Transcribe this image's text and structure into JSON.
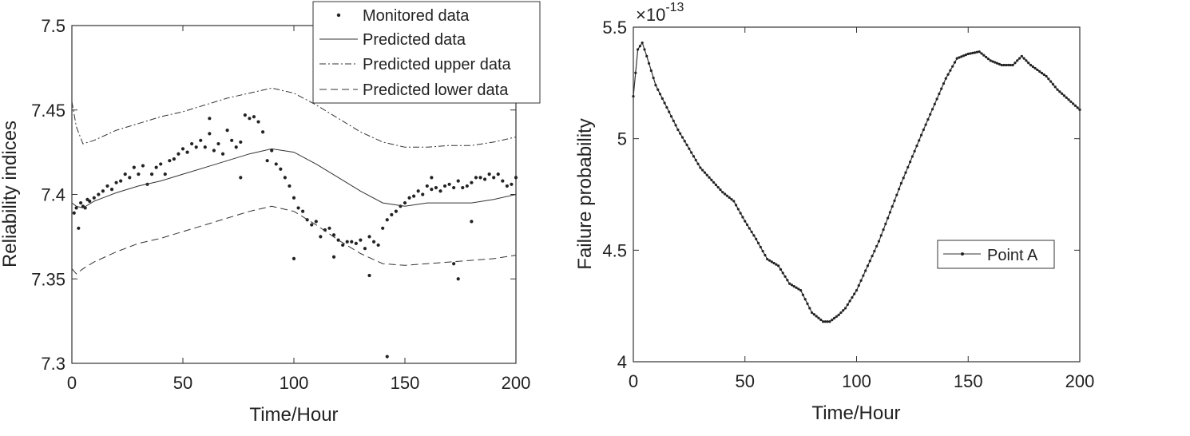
{
  "chart_data": [
    {
      "type": "scatter+line",
      "title": "",
      "xlabel": "Time/Hour",
      "ylabel": "Reliability indices",
      "xlim": [
        0,
        200
      ],
      "ylim": [
        7.3,
        7.5
      ],
      "xticks": [
        0,
        50,
        100,
        150,
        200
      ],
      "yticks": [
        7.3,
        7.35,
        7.4,
        7.45,
        7.5
      ],
      "xtick_labels": [
        "0",
        "50",
        "100",
        "150",
        "200"
      ],
      "ytick_labels": [
        "7.3",
        "7.35",
        "7.4",
        "7.45",
        "7.5"
      ],
      "grid": false,
      "legend_position": "top-right",
      "legend": [
        "Monitored data",
        "Predicted data",
        "Predicted upper data",
        "Predicted lower data"
      ],
      "series": [
        {
          "name": "Monitored data",
          "style": "dots",
          "x": [
            1,
            2,
            3,
            4,
            5,
            6,
            7,
            8,
            10,
            12,
            14,
            16,
            18,
            20,
            22,
            24,
            26,
            28,
            30,
            32,
            34,
            36,
            38,
            40,
            42,
            44,
            46,
            48,
            50,
            52,
            54,
            56,
            58,
            60,
            62,
            64,
            66,
            68,
            70,
            72,
            74,
            76,
            78,
            80,
            82,
            84,
            86,
            88,
            90,
            92,
            94,
            96,
            98,
            100,
            102,
            104,
            106,
            108,
            110,
            112,
            114,
            116,
            118,
            120,
            122,
            124,
            126,
            128,
            130,
            132,
            134,
            136,
            138,
            140,
            142,
            144,
            146,
            148,
            150,
            152,
            154,
            156,
            158,
            160,
            162,
            164,
            166,
            168,
            170,
            172,
            174,
            176,
            178,
            180,
            182,
            184,
            186,
            188,
            190,
            192,
            194,
            196,
            198,
            200
          ],
          "y": [
            7.389,
            7.392,
            7.38,
            7.395,
            7.393,
            7.392,
            7.397,
            7.396,
            7.398,
            7.4,
            7.402,
            7.405,
            7.403,
            7.407,
            7.408,
            7.412,
            7.41,
            7.416,
            7.412,
            7.417,
            7.406,
            7.412,
            7.416,
            7.418,
            7.412,
            7.42,
            7.421,
            7.424,
            7.427,
            7.425,
            7.43,
            7.428,
            7.432,
            7.428,
            7.436,
            7.426,
            7.43,
            7.424,
            7.438,
            7.432,
            7.428,
            7.431,
            7.447,
            7.445,
            7.446,
            7.443,
            7.437,
            7.42,
            7.426,
            7.418,
            7.415,
            7.41,
            7.405,
            7.398,
            7.392,
            7.39,
            7.385,
            7.382,
            7.384,
            7.375,
            7.379,
            7.38,
            7.376,
            7.373,
            7.37,
            7.372,
            7.372,
            7.371,
            7.373,
            7.368,
            7.375,
            7.372,
            7.37,
            7.38,
            7.385,
            7.388,
            7.39,
            7.393,
            7.395,
            7.398,
            7.399,
            7.402,
            7.4,
            7.405,
            7.403,
            7.404,
            7.402,
            7.405,
            7.406,
            7.404,
            7.408,
            7.404,
            7.405,
            7.407,
            7.41,
            7.41,
            7.409,
            7.412,
            7.41,
            7.412,
            7.408,
            7.405,
            7.406,
            7.41
          ],
          "outliers_x": [
            62,
            76,
            100,
            118,
            134,
            142,
            162,
            172,
            180,
            174
          ],
          "outliers_y": [
            7.445,
            7.41,
            7.362,
            7.363,
            7.352,
            7.304,
            7.41,
            7.359,
            7.384,
            7.35
          ]
        },
        {
          "name": "Predicted data",
          "style": "solid",
          "x": [
            0,
            2,
            5,
            10,
            20,
            30,
            40,
            50,
            60,
            70,
            80,
            90,
            100,
            110,
            120,
            130,
            140,
            150,
            160,
            170,
            180,
            190,
            200
          ],
          "y": [
            7.395,
            7.393,
            7.392,
            7.396,
            7.401,
            7.405,
            7.408,
            7.412,
            7.416,
            7.42,
            7.424,
            7.427,
            7.425,
            7.418,
            7.41,
            7.402,
            7.395,
            7.393,
            7.395,
            7.395,
            7.395,
            7.397,
            7.4
          ]
        },
        {
          "name": "Predicted upper data",
          "style": "dash-dot",
          "x": [
            0,
            2,
            5,
            10,
            20,
            30,
            40,
            50,
            60,
            70,
            80,
            90,
            100,
            110,
            120,
            130,
            140,
            150,
            160,
            170,
            180,
            190,
            200
          ],
          "y": [
            7.455,
            7.44,
            7.43,
            7.432,
            7.438,
            7.442,
            7.446,
            7.449,
            7.453,
            7.457,
            7.46,
            7.463,
            7.46,
            7.453,
            7.445,
            7.437,
            7.431,
            7.428,
            7.428,
            7.429,
            7.429,
            7.431,
            7.434
          ]
        },
        {
          "name": "Predicted lower data",
          "style": "dashed",
          "x": [
            0,
            2,
            5,
            10,
            20,
            30,
            40,
            50,
            60,
            70,
            80,
            90,
            100,
            110,
            120,
            130,
            140,
            150,
            160,
            170,
            180,
            190,
            200
          ],
          "y": [
            7.356,
            7.353,
            7.356,
            7.36,
            7.366,
            7.371,
            7.374,
            7.378,
            7.382,
            7.386,
            7.39,
            7.393,
            7.39,
            7.382,
            7.373,
            7.365,
            7.359,
            7.358,
            7.359,
            7.36,
            7.361,
            7.362,
            7.364
          ]
        }
      ]
    },
    {
      "type": "line",
      "title": "",
      "xlabel": "Time/Hour",
      "ylabel": "Failure probability",
      "exponent_label_base": "×10",
      "exponent_label_power": "-13",
      "xlim": [
        0,
        200
      ],
      "ylim": [
        4,
        5.5
      ],
      "xticks": [
        0,
        50,
        100,
        150,
        200
      ],
      "yticks": [
        4,
        4.5,
        5,
        5.5
      ],
      "xtick_labels": [
        "0",
        "50",
        "100",
        "150",
        "200"
      ],
      "ytick_labels": [
        "4",
        "4.5",
        "5",
        "5.5"
      ],
      "grid": false,
      "legend_position": "right",
      "legend": [
        "Point A"
      ],
      "series": [
        {
          "name": "Point A",
          "style": "solid-dots",
          "x": [
            0,
            2,
            4,
            6,
            10,
            20,
            30,
            40,
            45,
            50,
            55,
            60,
            65,
            70,
            75,
            80,
            85,
            88,
            92,
            95,
            100,
            110,
            120,
            130,
            140,
            145,
            150,
            155,
            160,
            165,
            170,
            174,
            178,
            185,
            190,
            200
          ],
          "y": [
            5.19,
            5.4,
            5.43,
            5.37,
            5.24,
            5.04,
            4.87,
            4.76,
            4.72,
            4.63,
            4.55,
            4.46,
            4.43,
            4.35,
            4.32,
            4.22,
            4.18,
            4.18,
            4.21,
            4.24,
            4.32,
            4.54,
            4.8,
            5.04,
            5.27,
            5.36,
            5.38,
            5.39,
            5.35,
            5.33,
            5.33,
            5.37,
            5.33,
            5.28,
            5.22,
            5.13
          ]
        }
      ]
    }
  ]
}
